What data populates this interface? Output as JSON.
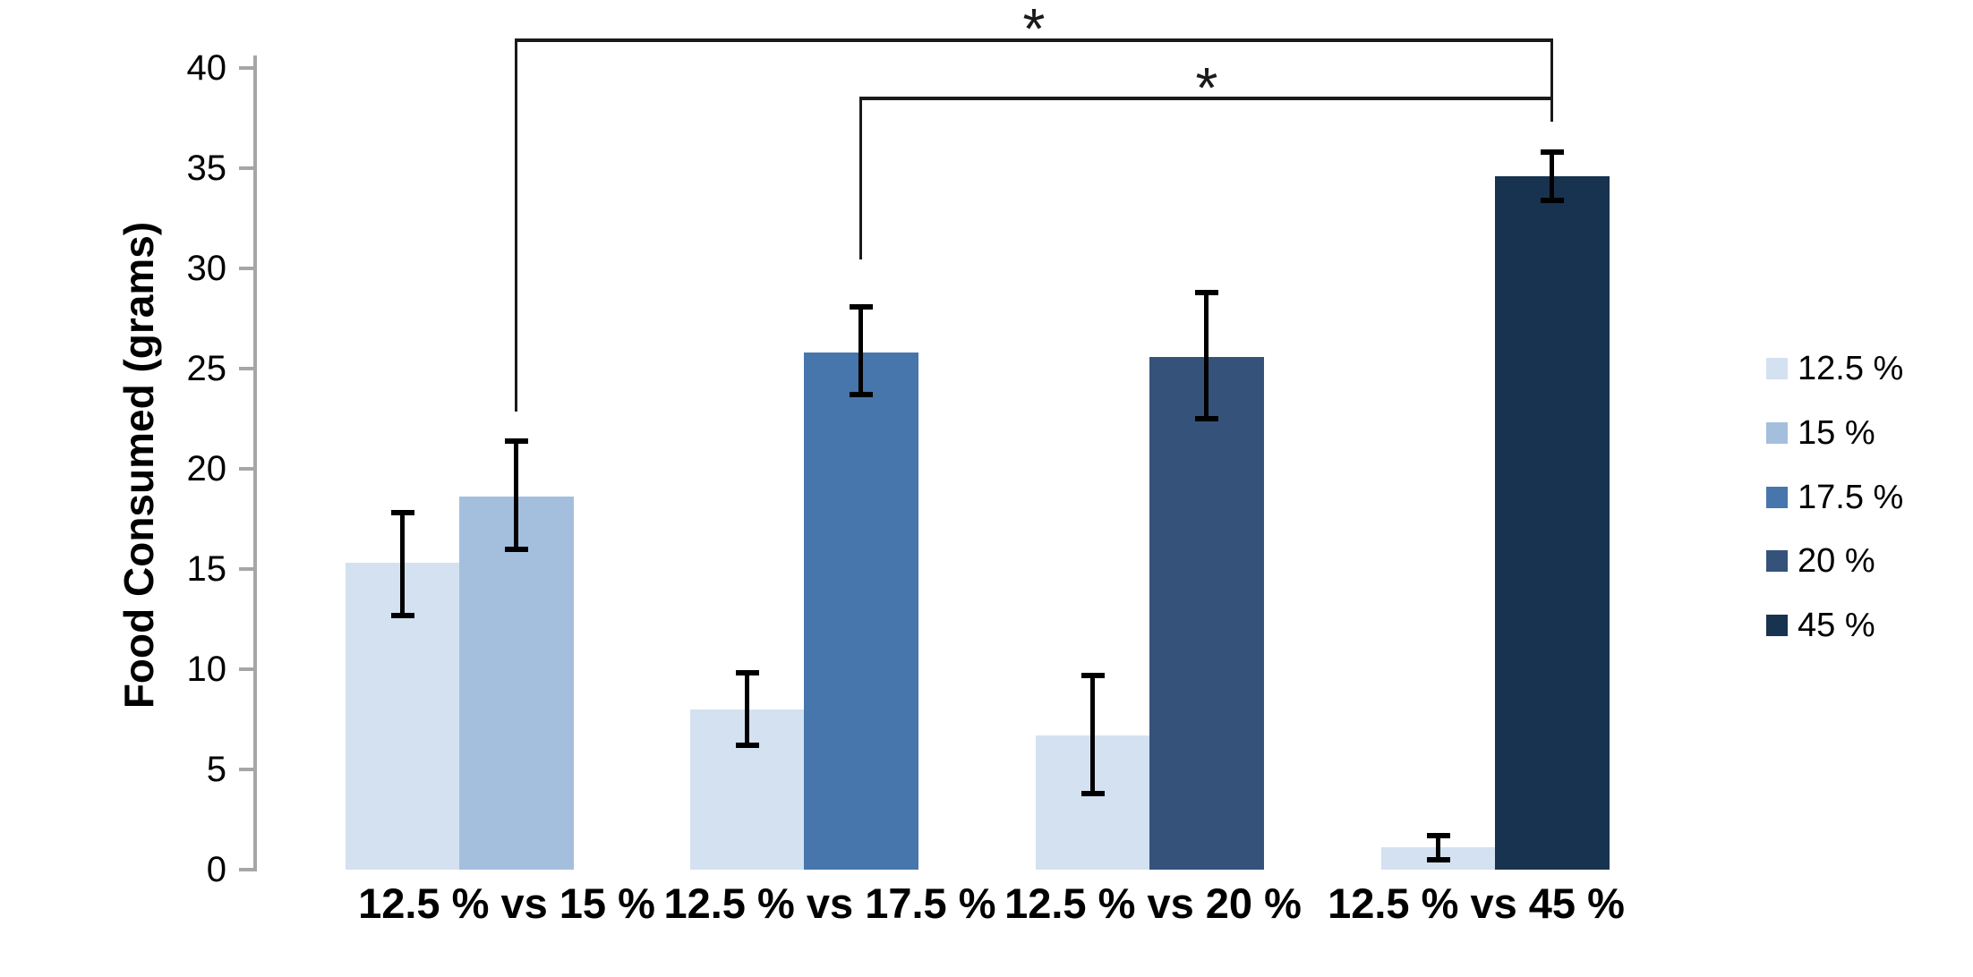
{
  "chart_data": {
    "type": "bar",
    "title": "",
    "xlabel": "",
    "ylabel": "Food Consumed (grams)",
    "ylim": [
      0,
      40
    ],
    "yticks": [
      0,
      5,
      10,
      15,
      20,
      25,
      30,
      35,
      40
    ],
    "grid": false,
    "legend_position": "right-outside",
    "categories": [
      "12.5 % vs 15 %",
      "12.5 % vs 17.5 %",
      "12.5 % vs 20 %",
      "12.5 % vs 45 %"
    ],
    "groups": [
      {
        "category": "12.5 % vs 15 %",
        "bars": [
          {
            "series": "12.5 %",
            "value": 15.3,
            "err_plus": 2.5,
            "err_minus": 2.6
          },
          {
            "series": "15 %",
            "value": 18.6,
            "err_plus": 2.8,
            "err_minus": 2.6
          }
        ]
      },
      {
        "category": "12.5 % vs 17.5 %",
        "bars": [
          {
            "series": "12.5 %",
            "value": 8.0,
            "err_plus": 1.8,
            "err_minus": 1.8
          },
          {
            "series": "17.5 %",
            "value": 25.8,
            "err_plus": 2.3,
            "err_minus": 2.1
          }
        ]
      },
      {
        "category": "12.5 % vs 20 %",
        "bars": [
          {
            "series": "12.5 %",
            "value": 6.7,
            "err_plus": 3.0,
            "err_minus": 2.9
          },
          {
            "series": "20 %",
            "value": 25.6,
            "err_plus": 3.2,
            "err_minus": 3.1
          }
        ]
      },
      {
        "category": "12.5 % vs 45 %",
        "bars": [
          {
            "series": "12.5 %",
            "value": 1.1,
            "err_plus": 0.6,
            "err_minus": 0.6
          },
          {
            "series": "45 %",
            "value": 34.6,
            "err_plus": 1.2,
            "err_minus": 1.2
          }
        ]
      }
    ],
    "series_colors": {
      "12.5 %": "#d3e1f1",
      "15 %": "#a4bfde",
      "17.5 %": "#4676ac",
      "20 %": "#35537a",
      "45 %": "#17334f"
    },
    "legend": [
      "12.5 %",
      "15 %",
      "17.5 %",
      "20 %",
      "45 %"
    ],
    "annotations": [
      {
        "type": "significance-bracket",
        "label": "*",
        "from": {
          "group": 0,
          "series": "15 %"
        },
        "to": {
          "group": 3,
          "series": "45 %"
        }
      },
      {
        "type": "significance-bracket",
        "label": "*",
        "from": {
          "group": 1,
          "series": "17.5 %"
        },
        "to": {
          "group": 3,
          "series": "45 %"
        }
      }
    ],
    "axis_color": "#a6a6a6",
    "error_bar_color": "#000000",
    "text_color": "#000000",
    "background_color": "#ffffff"
  }
}
